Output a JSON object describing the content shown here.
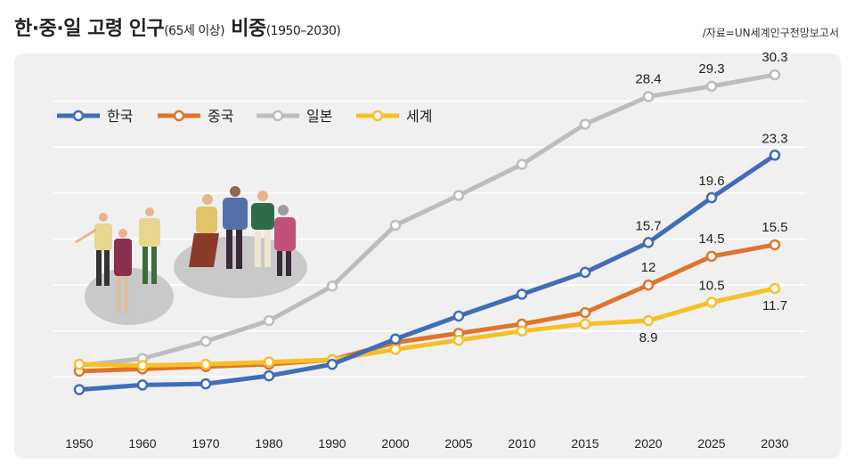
{
  "title": {
    "main": "한·중·일 고령 인구",
    "sub1": "(65세 이상)",
    "main2": " 비중",
    "sub2": "(1950–2030)"
  },
  "source": "/자료=UN세계인구전망보고서",
  "colors": {
    "korea": "#3f6dba",
    "china": "#e0742c",
    "japan": "#bdbdbd",
    "world": "#f7bf28"
  },
  "chart_data": {
    "type": "line",
    "categories": [
      "1950",
      "1960",
      "1970",
      "1980",
      "1990",
      "2000",
      "2005",
      "2010",
      "2015",
      "2020",
      "2025",
      "2030"
    ],
    "series": [
      {
        "name": "한국",
        "key": "korea",
        "values": [
          2.9,
          3.3,
          3.4,
          4.1,
          5.1,
          7.3,
          9.3,
          11.2,
          13.1,
          15.7,
          19.6,
          23.3
        ],
        "labels": [
          null,
          null,
          null,
          null,
          null,
          null,
          null,
          null,
          null,
          "15.7",
          "19.6",
          "23.3"
        ]
      },
      {
        "name": "중국",
        "key": "china",
        "values": [
          4.5,
          4.7,
          4.9,
          5.1,
          5.5,
          7.0,
          7.8,
          8.6,
          9.6,
          12.0,
          14.5,
          15.5
        ],
        "labels": [
          null,
          null,
          null,
          null,
          null,
          null,
          null,
          null,
          null,
          "12",
          "14.5",
          "15.5"
        ]
      },
      {
        "name": "일본",
        "key": "japan",
        "values": [
          5.0,
          5.6,
          7.1,
          8.9,
          11.9,
          17.2,
          19.8,
          22.5,
          26.0,
          28.4,
          29.3,
          30.3
        ],
        "labels": [
          null,
          null,
          null,
          null,
          null,
          null,
          null,
          null,
          null,
          "28.4",
          "29.3",
          "30.3"
        ]
      },
      {
        "name": "세계",
        "key": "world",
        "values": [
          5.1,
          5.0,
          5.1,
          5.3,
          5.5,
          6.4,
          7.2,
          8.0,
          8.6,
          8.9,
          10.5,
          11.7
        ],
        "labels": [
          null,
          null,
          null,
          null,
          null,
          null,
          null,
          null,
          null,
          "8.9",
          "10.5",
          "11.7"
        ]
      }
    ],
    "ylim": [
      0,
      32
    ],
    "grid": true,
    "legend": "top-left",
    "xlabel": "",
    "ylabel": ""
  }
}
